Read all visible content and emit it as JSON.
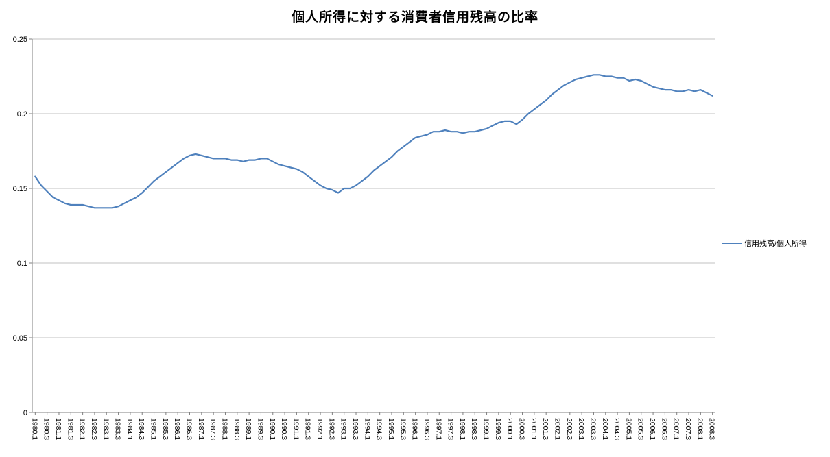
{
  "title": "個人所得に対する消費者信用残高の比率",
  "legend": {
    "label": "信用残高/個人所得"
  },
  "colors": {
    "series": "#4F81BD",
    "gridline": "#C0C0C0",
    "axis": "#7F7F7F",
    "text": "#000000"
  },
  "chart_data": {
    "type": "line",
    "title": "個人所得に対する消費者信用残高の比率",
    "xlabel": "",
    "ylabel": "",
    "ylim": [
      0,
      0.25
    ],
    "yticks": [
      0,
      0.05,
      0.1,
      0.15,
      0.2,
      0.25
    ],
    "grid": true,
    "legend_position": "right",
    "x_tick_label_pattern": "labels shown only for quarters .1 and .3",
    "x": [
      "1980.1",
      "1980.2",
      "1980.3",
      "1980.4",
      "1981.1",
      "1981.2",
      "1981.3",
      "1981.4",
      "1982.1",
      "1982.2",
      "1982.3",
      "1982.4",
      "1983.1",
      "1983.2",
      "1983.3",
      "1983.4",
      "1984.1",
      "1984.2",
      "1984.3",
      "1984.4",
      "1985.1",
      "1985.2",
      "1985.3",
      "1985.4",
      "1986.1",
      "1986.2",
      "1986.3",
      "1986.4",
      "1987.1",
      "1987.2",
      "1987.3",
      "1987.4",
      "1988.1",
      "1988.2",
      "1988.3",
      "1988.4",
      "1989.1",
      "1989.2",
      "1989.3",
      "1989.4",
      "1990.1",
      "1990.2",
      "1990.3",
      "1990.4",
      "1991.1",
      "1991.2",
      "1991.3",
      "1991.4",
      "1992.1",
      "1992.2",
      "1992.3",
      "1992.4",
      "1993.1",
      "1993.2",
      "1993.3",
      "1993.4",
      "1994.1",
      "1994.2",
      "1994.3",
      "1994.4",
      "1995.1",
      "1995.2",
      "1995.3",
      "1995.4",
      "1996.1",
      "1996.2",
      "1996.3",
      "1996.4",
      "1997.1",
      "1997.2",
      "1997.3",
      "1997.4",
      "1998.1",
      "1998.2",
      "1998.3",
      "1998.4",
      "1999.1",
      "1999.2",
      "1999.3",
      "1999.4",
      "2000.1",
      "2000.2",
      "2000.3",
      "2000.4",
      "2001.1",
      "2001.2",
      "2001.3",
      "2001.4",
      "2002.1",
      "2002.2",
      "2002.3",
      "2002.4",
      "2003.1",
      "2003.2",
      "2003.3",
      "2003.4",
      "2004.1",
      "2004.2",
      "2004.3",
      "2004.4",
      "2005.1",
      "2005.2",
      "2005.3",
      "2005.4",
      "2006.1",
      "2006.2",
      "2006.3",
      "2006.4",
      "2007.1",
      "2007.2",
      "2007.3",
      "2007.4",
      "2008.1",
      "2008.2",
      "2008.3"
    ],
    "series": [
      {
        "name": "信用残高/個人所得",
        "color": "#4F81BD",
        "values": [
          0.158,
          0.152,
          0.148,
          0.144,
          0.142,
          0.14,
          0.139,
          0.139,
          0.139,
          0.138,
          0.137,
          0.137,
          0.137,
          0.137,
          0.138,
          0.14,
          0.142,
          0.144,
          0.147,
          0.151,
          0.155,
          0.158,
          0.161,
          0.164,
          0.167,
          0.17,
          0.172,
          0.173,
          0.172,
          0.171,
          0.17,
          0.17,
          0.17,
          0.169,
          0.169,
          0.168,
          0.169,
          0.169,
          0.17,
          0.17,
          0.168,
          0.166,
          0.165,
          0.164,
          0.163,
          0.161,
          0.158,
          0.155,
          0.152,
          0.15,
          0.149,
          0.147,
          0.15,
          0.15,
          0.152,
          0.155,
          0.158,
          0.162,
          0.165,
          0.168,
          0.171,
          0.175,
          0.178,
          0.181,
          0.184,
          0.185,
          0.186,
          0.188,
          0.188,
          0.189,
          0.188,
          0.188,
          0.187,
          0.188,
          0.188,
          0.189,
          0.19,
          0.192,
          0.194,
          0.195,
          0.195,
          0.193,
          0.196,
          0.2,
          0.203,
          0.206,
          0.209,
          0.213,
          0.216,
          0.219,
          0.221,
          0.223,
          0.224,
          0.225,
          0.226,
          0.226,
          0.225,
          0.225,
          0.224,
          0.224,
          0.222,
          0.223,
          0.222,
          0.22,
          0.218,
          0.217,
          0.216,
          0.216,
          0.215,
          0.215,
          0.216,
          0.215,
          0.216,
          0.214,
          0.212
        ]
      }
    ]
  }
}
